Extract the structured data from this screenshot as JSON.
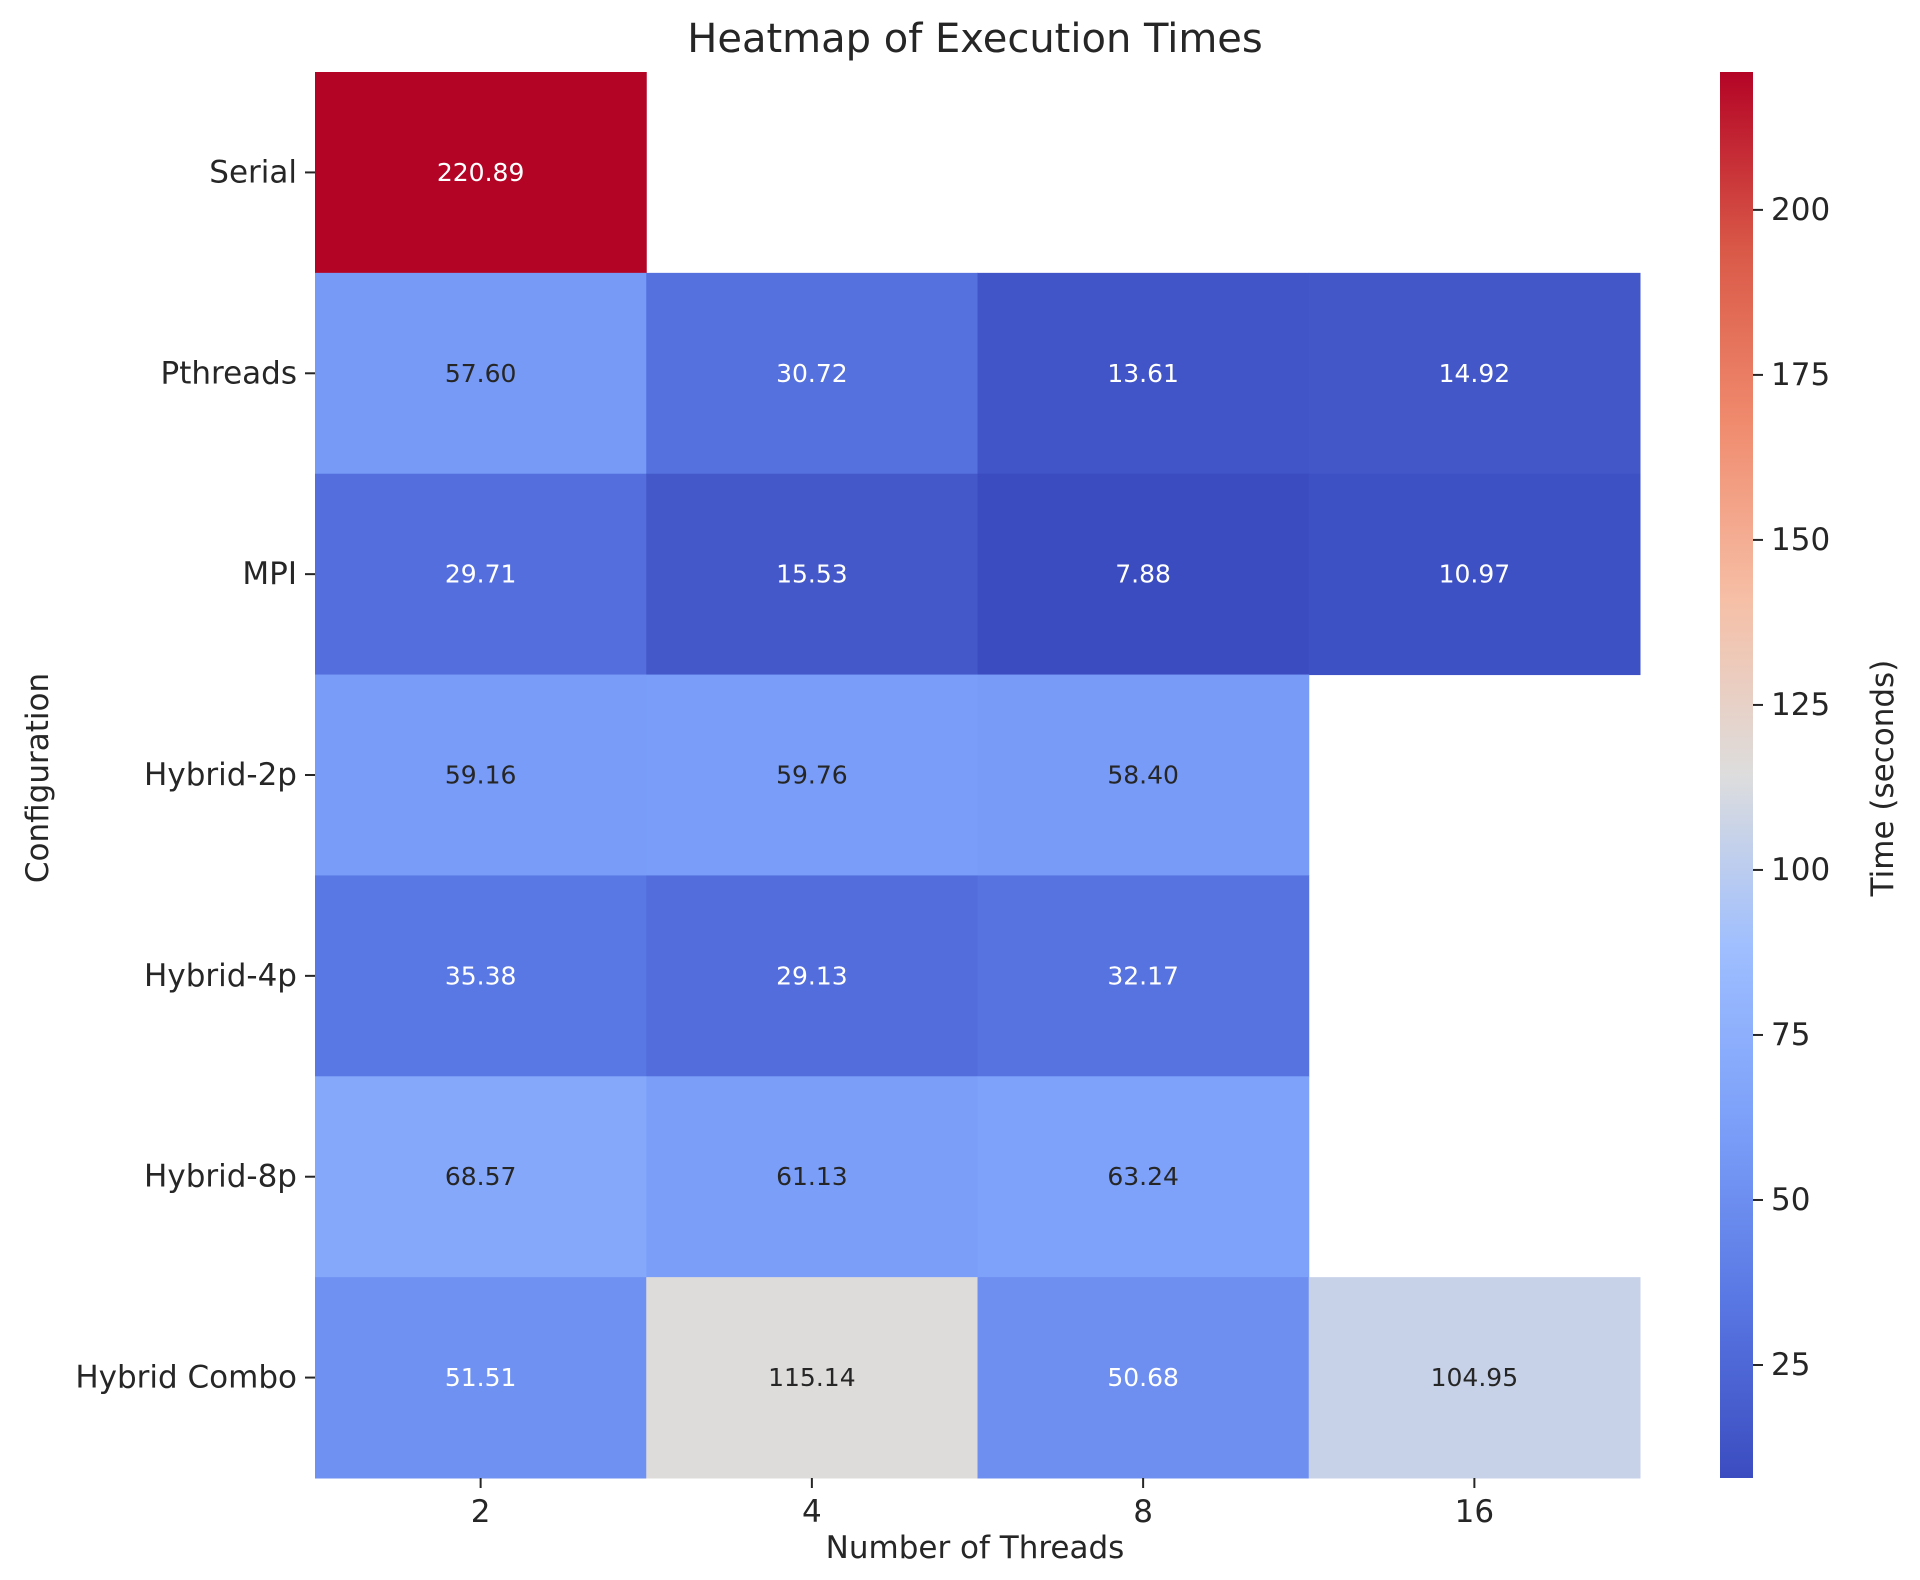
{
  "chart_data": {
    "type": "heatmap",
    "title": "Heatmap of Execution Times",
    "xlabel": "Number of Threads",
    "ylabel": "Configuration",
    "colorbar_label": "Time (seconds)",
    "colormap": "coolwarm",
    "x_categories": [
      "2",
      "4",
      "8",
      "16"
    ],
    "y_categories": [
      "Serial",
      "Pthreads",
      "MPI",
      "Hybrid-2p",
      "Hybrid-4p",
      "Hybrid-8p",
      "Hybrid Combo"
    ],
    "values": [
      [
        220.89,
        null,
        null,
        null
      ],
      [
        57.6,
        30.72,
        13.61,
        14.92
      ],
      [
        29.71,
        15.53,
        7.88,
        10.97
      ],
      [
        59.16,
        59.76,
        58.4,
        null
      ],
      [
        35.38,
        29.13,
        32.17,
        null
      ],
      [
        68.57,
        61.13,
        63.24,
        null
      ],
      [
        51.51,
        115.14,
        50.68,
        104.95
      ]
    ],
    "value_labels": [
      [
        "220.89",
        "",
        "",
        ""
      ],
      [
        "57.60",
        "30.72",
        "13.61",
        "14.92"
      ],
      [
        "29.71",
        "15.53",
        "7.88",
        "10.97"
      ],
      [
        "59.16",
        "59.76",
        "58.40",
        ""
      ],
      [
        "35.38",
        "29.13",
        "32.17",
        ""
      ],
      [
        "68.57",
        "61.13",
        "63.24",
        ""
      ],
      [
        "51.51",
        "115.14",
        "50.68",
        "104.95"
      ]
    ],
    "color_range": [
      7.88,
      220.89
    ],
    "colorbar_ticks": [
      "25",
      "50",
      "75",
      "100",
      "125",
      "150",
      "175",
      "200"
    ],
    "colorbar_tick_values": [
      25,
      50,
      75,
      100,
      125,
      150,
      175,
      200
    ],
    "grid": false,
    "legend": "colorbar-right"
  }
}
